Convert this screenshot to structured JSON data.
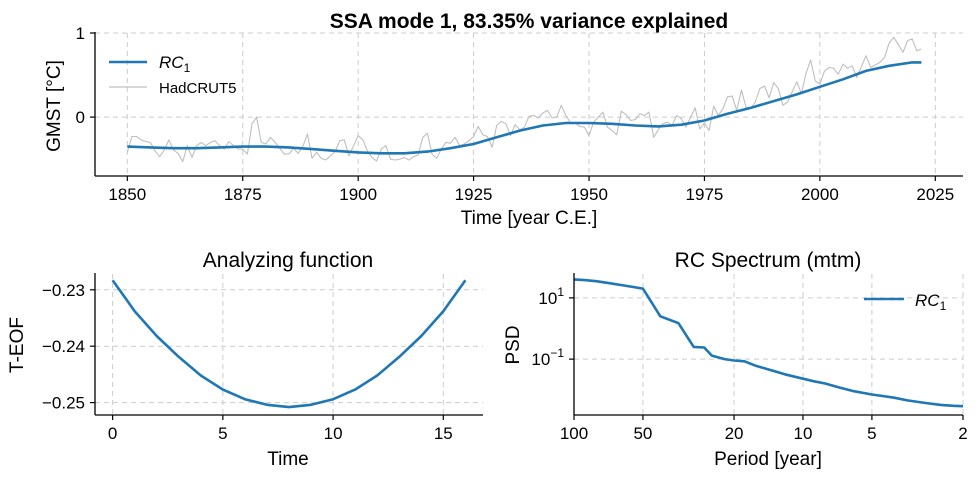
{
  "colors": {
    "rc": "#1f77b4",
    "hadcrut": "#bfbfbf",
    "grid": "#cccccc",
    "axis": "#000000"
  },
  "chart_data": [
    {
      "id": "top",
      "type": "line",
      "title": "SSA  mode 1, 83.35% variance explained",
      "xlabel": "Time [year C.E.]",
      "ylabel": "GMST [°C]",
      "xlim": [
        1843,
        2031
      ],
      "ylim": [
        -0.7,
        1.0
      ],
      "xticks": [
        1850,
        1875,
        1900,
        1925,
        1950,
        1975,
        2000,
        2025
      ],
      "yticks": [
        0,
        1
      ],
      "grid": true,
      "legend": {
        "placement": "top-left",
        "entries": [
          {
            "label": "RC",
            "sub": "1",
            "series": "rc"
          },
          {
            "label": "HadCRUT5",
            "sub": "",
            "series": "hadcrut"
          }
        ]
      },
      "series": [
        {
          "key": "rc",
          "name": "RC1",
          "x": [
            1850,
            1855,
            1860,
            1865,
            1870,
            1875,
            1880,
            1885,
            1890,
            1895,
            1900,
            1905,
            1910,
            1915,
            1920,
            1925,
            1930,
            1935,
            1940,
            1945,
            1950,
            1955,
            1960,
            1965,
            1970,
            1975,
            1980,
            1985,
            1990,
            1995,
            2000,
            2005,
            2010,
            2015,
            2020,
            2022
          ],
          "y": [
            -0.35,
            -0.36,
            -0.37,
            -0.37,
            -0.36,
            -0.35,
            -0.35,
            -0.36,
            -0.38,
            -0.4,
            -0.42,
            -0.43,
            -0.43,
            -0.41,
            -0.37,
            -0.32,
            -0.24,
            -0.16,
            -0.1,
            -0.07,
            -0.07,
            -0.08,
            -0.1,
            -0.11,
            -0.09,
            -0.04,
            0.04,
            0.11,
            0.19,
            0.27,
            0.36,
            0.45,
            0.55,
            0.61,
            0.65,
            0.65
          ]
        },
        {
          "key": "hadcrut",
          "name": "HadCRUT5",
          "x": [
            1850,
            1851,
            1852,
            1853,
            1854,
            1855,
            1856,
            1857,
            1858,
            1859,
            1860,
            1861,
            1862,
            1863,
            1864,
            1865,
            1866,
            1867,
            1868,
            1869,
            1870,
            1871,
            1872,
            1873,
            1874,
            1875,
            1876,
            1877,
            1878,
            1879,
            1880,
            1881,
            1882,
            1883,
            1884,
            1885,
            1886,
            1887,
            1888,
            1889,
            1890,
            1891,
            1892,
            1893,
            1894,
            1895,
            1896,
            1897,
            1898,
            1899,
            1900,
            1901,
            1902,
            1903,
            1904,
            1905,
            1906,
            1907,
            1908,
            1909,
            1910,
            1911,
            1912,
            1913,
            1914,
            1915,
            1916,
            1917,
            1918,
            1919,
            1920,
            1921,
            1922,
            1923,
            1924,
            1925,
            1926,
            1927,
            1928,
            1929,
            1930,
            1931,
            1932,
            1933,
            1934,
            1935,
            1936,
            1937,
            1938,
            1939,
            1940,
            1941,
            1942,
            1943,
            1944,
            1945,
            1946,
            1947,
            1948,
            1949,
            1950,
            1951,
            1952,
            1953,
            1954,
            1955,
            1956,
            1957,
            1958,
            1959,
            1960,
            1961,
            1962,
            1963,
            1964,
            1965,
            1966,
            1967,
            1968,
            1969,
            1970,
            1971,
            1972,
            1973,
            1974,
            1975,
            1976,
            1977,
            1978,
            1979,
            1980,
            1981,
            1982,
            1983,
            1984,
            1985,
            1986,
            1987,
            1988,
            1989,
            1990,
            1991,
            1992,
            1993,
            1994,
            1995,
            1996,
            1997,
            1998,
            1999,
            2000,
            2001,
            2002,
            2003,
            2004,
            2005,
            2006,
            2007,
            2008,
            2009,
            2010,
            2011,
            2012,
            2013,
            2014,
            2015,
            2016,
            2017,
            2018,
            2019,
            2020,
            2021,
            2022
          ],
          "y": [
            -0.42,
            -0.23,
            -0.23,
            -0.27,
            -0.29,
            -0.3,
            -0.4,
            -0.47,
            -0.39,
            -0.27,
            -0.39,
            -0.43,
            -0.53,
            -0.34,
            -0.48,
            -0.34,
            -0.3,
            -0.34,
            -0.3,
            -0.28,
            -0.34,
            -0.38,
            -0.29,
            -0.34,
            -0.38,
            -0.38,
            -0.44,
            -0.08,
            0.0,
            -0.3,
            -0.32,
            -0.24,
            -0.3,
            -0.37,
            -0.44,
            -0.44,
            -0.37,
            -0.43,
            -0.35,
            -0.2,
            -0.49,
            -0.42,
            -0.49,
            -0.51,
            -0.46,
            -0.41,
            -0.28,
            -0.27,
            -0.46,
            -0.34,
            -0.22,
            -0.27,
            -0.4,
            -0.48,
            -0.52,
            -0.38,
            -0.34,
            -0.5,
            -0.51,
            -0.5,
            -0.48,
            -0.51,
            -0.47,
            -0.45,
            -0.24,
            -0.19,
            -0.44,
            -0.49,
            -0.38,
            -0.3,
            -0.31,
            -0.24,
            -0.34,
            -0.32,
            -0.28,
            -0.23,
            -0.11,
            -0.21,
            -0.23,
            -0.36,
            -0.1,
            -0.05,
            -0.08,
            -0.22,
            -0.09,
            -0.15,
            -0.12,
            0.01,
            0.02,
            -0.01,
            0.05,
            0.08,
            -0.01,
            0.0,
            0.14,
            0.02,
            -0.07,
            -0.07,
            -0.11,
            -0.12,
            -0.22,
            -0.06,
            0.0,
            0.06,
            -0.12,
            -0.16,
            -0.21,
            0.07,
            0.03,
            -0.04,
            -0.03,
            0.04,
            0.02,
            0.06,
            -0.24,
            -0.15,
            -0.08,
            -0.06,
            -0.1,
            0.02,
            -0.02,
            -0.12,
            0.0,
            0.11,
            -0.14,
            -0.07,
            -0.16,
            0.13,
            0.02,
            0.1,
            0.24,
            0.25,
            0.08,
            0.32,
            0.12,
            0.1,
            0.18,
            0.34,
            0.37,
            0.23,
            0.41,
            0.34,
            0.14,
            0.18,
            0.3,
            0.42,
            0.28,
            0.52,
            0.68,
            0.43,
            0.39,
            0.55,
            0.59,
            0.58,
            0.51,
            0.63,
            0.58,
            0.61,
            0.47,
            0.6,
            0.73,
            0.59,
            0.62,
            0.65,
            0.71,
            0.88,
            0.95,
            0.86,
            0.77,
            0.91,
            0.93,
            0.79,
            0.81
          ]
        }
      ]
    },
    {
      "id": "analyzing",
      "type": "line",
      "title": "Analyzing function",
      "xlabel": "Time",
      "ylabel": "T-EOF",
      "xlim": [
        -0.8,
        16.8
      ],
      "ylim": [
        -0.2522,
        -0.2272
      ],
      "xticks": [
        0,
        5,
        10,
        15
      ],
      "yticks": [
        -0.23,
        -0.24,
        -0.25
      ],
      "ytick_labels": [
        "−0.23",
        "−0.24",
        "−0.25"
      ],
      "grid": true,
      "series": [
        {
          "key": "eof",
          "x": [
            0,
            1,
            2,
            3,
            4,
            5,
            6,
            7,
            8,
            9,
            10,
            11,
            12,
            13,
            14,
            15,
            16
          ],
          "y": [
            -0.2283,
            -0.2338,
            -0.2382,
            -0.2419,
            -0.2452,
            -0.2477,
            -0.2494,
            -0.2504,
            -0.2508,
            -0.2504,
            -0.2494,
            -0.2477,
            -0.2452,
            -0.2419,
            -0.2382,
            -0.2338,
            -0.2283
          ]
        }
      ]
    },
    {
      "id": "spectrum",
      "type": "line",
      "title": "RC Spectrum (mtm)",
      "xlabel": "Period [year]",
      "ylabel": "PSD",
      "xscale": "log-reversed",
      "yscale": "log",
      "xlim": [
        100,
        2
      ],
      "ylim": [
        0.0015,
        60
      ],
      "xticks": [
        100,
        50,
        20,
        10,
        5,
        2
      ],
      "yticks": [
        0.1,
        10
      ],
      "ytick_labels": [
        {
          "base": "10",
          "exp": "−1"
        },
        {
          "base": "10",
          "exp": "1"
        }
      ],
      "grid": true,
      "legend": {
        "placement": "top-right",
        "entries": [
          {
            "label": "RC",
            "sub": "1",
            "series": "rc"
          }
        ]
      },
      "series": [
        {
          "key": "rc",
          "name": "RC1",
          "x": [
            100,
            90,
            80,
            70,
            60,
            50,
            42,
            35,
            30,
            27,
            25,
            22,
            20,
            18,
            16,
            14,
            12,
            10,
            9,
            8,
            7,
            6,
            5,
            4,
            3.5,
            3,
            2.5,
            2.2,
            2
          ],
          "y": [
            40,
            38,
            35,
            30,
            25,
            20,
            2.5,
            1.5,
            0.25,
            0.24,
            0.13,
            0.1,
            0.09,
            0.085,
            0.06,
            0.045,
            0.032,
            0.023,
            0.019,
            0.016,
            0.012,
            0.009,
            0.007,
            0.0055,
            0.0045,
            0.0038,
            0.0032,
            0.003,
            0.0029
          ]
        }
      ]
    }
  ]
}
